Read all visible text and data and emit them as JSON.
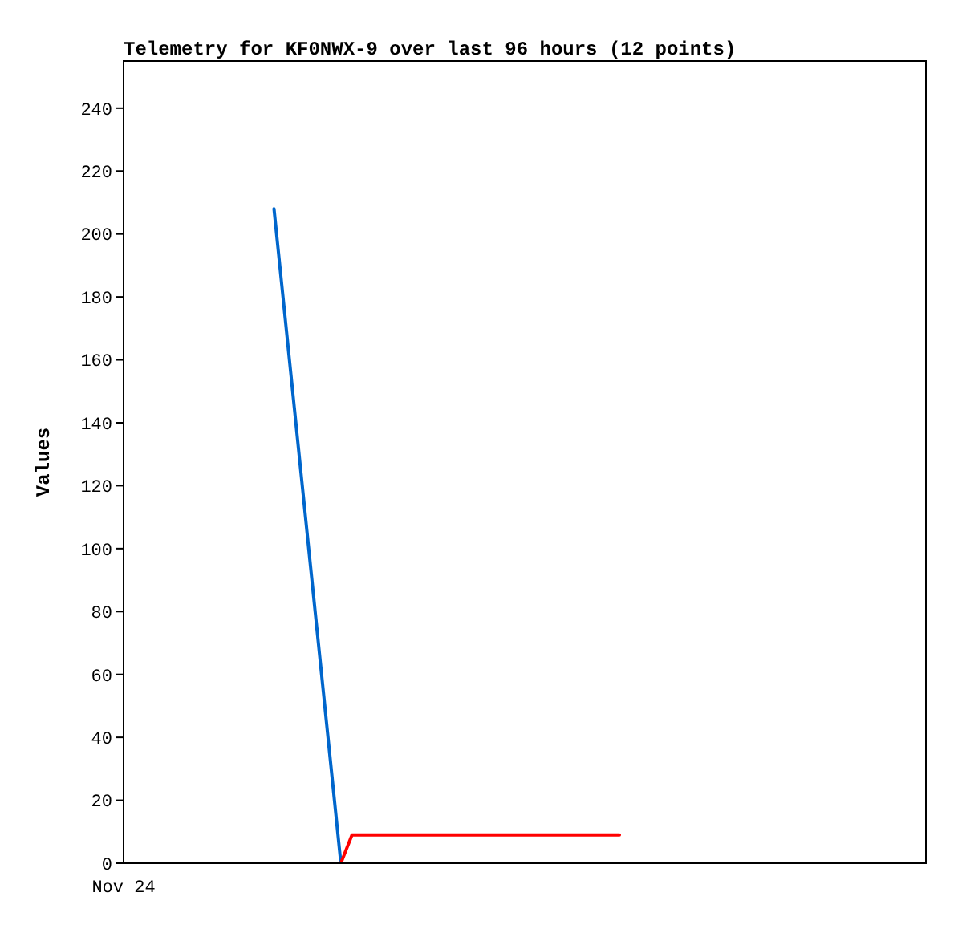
{
  "chart_data": {
    "type": "line",
    "title": "Telemetry for KF0NWX-9 over last 96 hours (12 points)",
    "ylabel": "Values",
    "categories": [
      null,
      null,
      null,
      null,
      null,
      null,
      null,
      null,
      null,
      null,
      null,
      null,
      null,
      null,
      null,
      null,
      null,
      null,
      null,
      null,
      null,
      null,
      null,
      null,
      null,
      null,
      null,
      null,
      null,
      null,
      null,
      null,
      null,
      null,
      null,
      null,
      null,
      null,
      null,
      null,
      null,
      null,
      null,
      null,
      null,
      null,
      null,
      null,
      null,
      null,
      null,
      null,
      null,
      null,
      null,
      null,
      null,
      null,
      null,
      null,
      null,
      null,
      null,
      null,
      null,
      null,
      null,
      null,
      null,
      null,
      null,
      null
    ],
    "ylim": [
      0,
      255
    ],
    "yticks": [
      0,
      20,
      40,
      60,
      80,
      100,
      120,
      140,
      160,
      180,
      200,
      220,
      240
    ],
    "annotations": [
      "Nov 24"
    ],
    "grid": false,
    "marker": "none",
    "line_style": "solid",
    "tick_labels": "y",
    "series": [
      {
        "color": "#000000",
        "values": [
          null,
          null,
          null,
          null,
          null,
          null,
          null,
          null,
          null,
          null,
          null,
          null,
          null,
          0,
          null,
          null,
          null,
          null,
          null,
          null,
          null,
          null,
          null,
          null,
          null,
          null,
          null,
          null,
          null,
          null,
          null,
          null,
          null,
          null,
          null,
          null,
          null,
          null,
          null,
          null,
          null,
          null,
          null,
          null,
          0,
          null,
          null,
          null,
          null,
          null,
          null,
          null,
          null,
          null,
          null,
          null,
          null,
          null,
          null,
          null,
          null,
          null,
          null,
          null,
          null,
          null,
          null,
          null,
          null,
          null,
          null,
          null
        ]
      },
      {
        "color": "#0066cc",
        "values": [
          null,
          null,
          null,
          null,
          null,
          null,
          null,
          null,
          null,
          null,
          null,
          null,
          null,
          208,
          null,
          null,
          null,
          null,
          null,
          0,
          null,
          null,
          null,
          null,
          null,
          null,
          null,
          null,
          null,
          null,
          null,
          null,
          null,
          null,
          null,
          null,
          null,
          null,
          null,
          null,
          null,
          null,
          null,
          null,
          null,
          null,
          null,
          null,
          null,
          null,
          null,
          null,
          null,
          null,
          null,
          null,
          null,
          null,
          null,
          null,
          null,
          null,
          null,
          null,
          null,
          null,
          null,
          null,
          null,
          null,
          null,
          null
        ]
      },
      {
        "color": "#ff0000",
        "values": [
          null,
          null,
          null,
          null,
          null,
          null,
          null,
          null,
          null,
          null,
          null,
          null,
          null,
          null,
          null,
          null,
          null,
          null,
          null,
          0,
          9,
          null,
          null,
          null,
          null,
          null,
          null,
          null,
          null,
          null,
          null,
          null,
          null,
          null,
          null,
          null,
          null,
          null,
          null,
          null,
          null,
          null,
          null,
          null,
          9,
          null,
          null,
          null,
          null,
          null,
          null,
          null,
          null,
          null,
          null,
          null,
          null,
          null,
          null,
          null,
          null,
          null,
          null,
          null,
          null,
          null,
          null,
          null,
          null,
          null,
          null,
          null
        ]
      }
    ]
  }
}
